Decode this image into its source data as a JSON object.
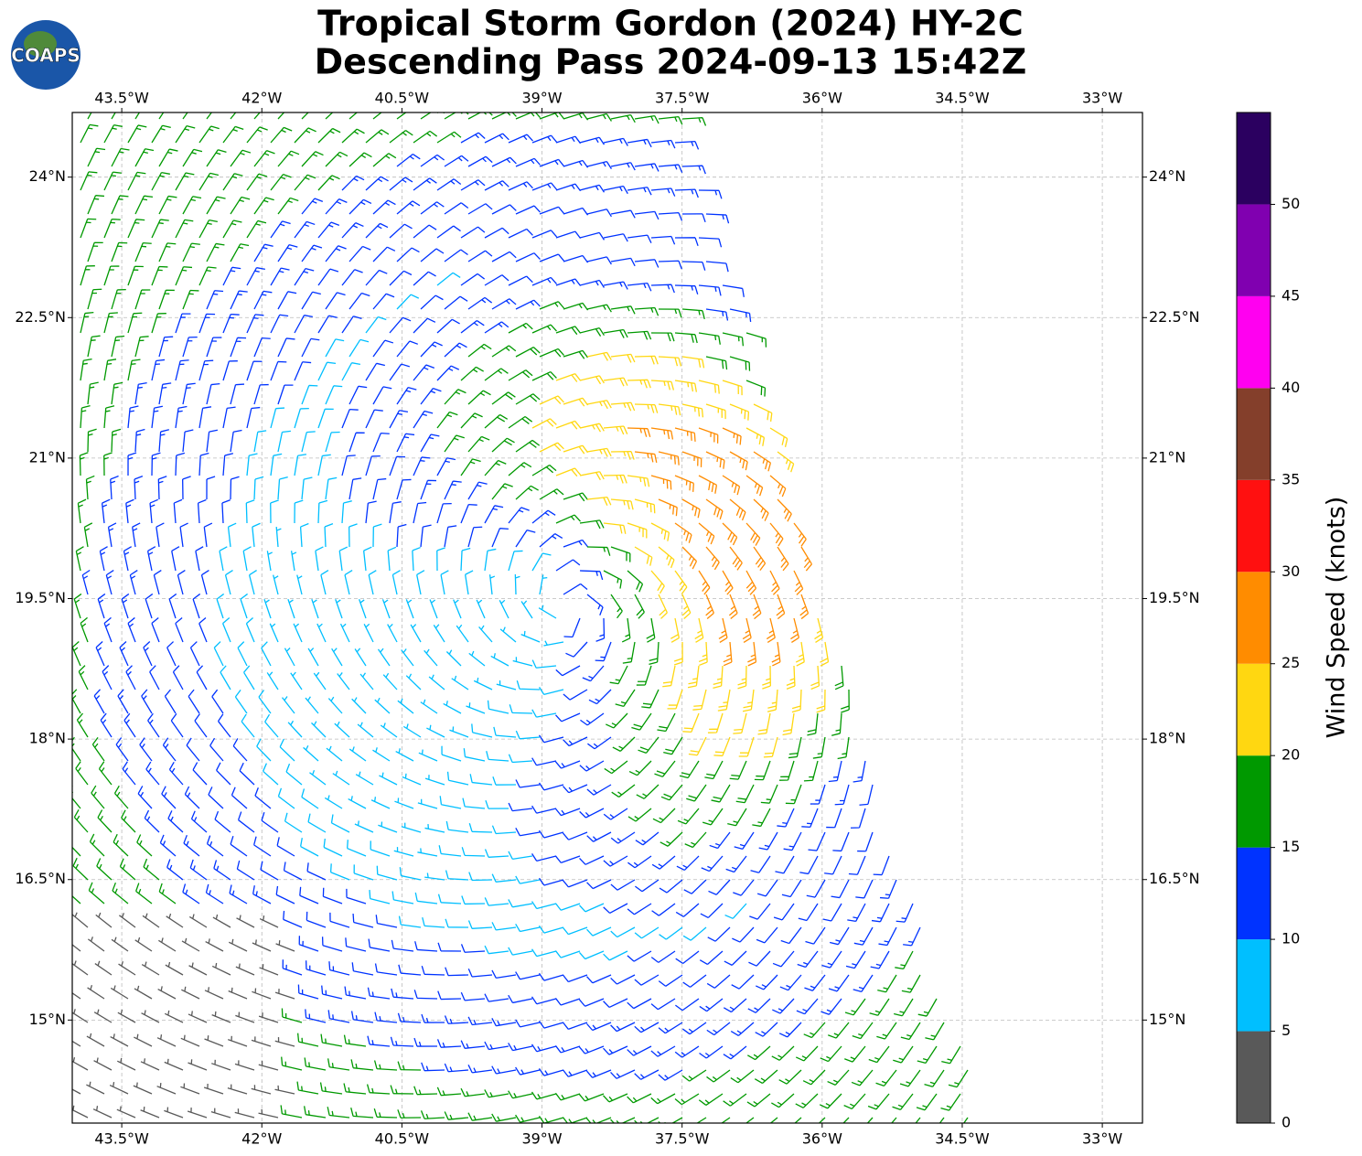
{
  "chart_data": {
    "type": "wind-barb-map",
    "title": [
      "Tropical Storm Gordon (2024) HY-2C",
      "Descending Pass 2024-09-13 15:42Z"
    ],
    "logo_text": "COAPS",
    "xlim": [
      -44.03,
      -32.57
    ],
    "ylim": [
      13.9,
      24.69
    ],
    "xticks": [
      {
        "value": -43.5,
        "label": "43.5°W"
      },
      {
        "value": -42,
        "label": "42°W"
      },
      {
        "value": -40.5,
        "label": "40.5°W"
      },
      {
        "value": -39,
        "label": "39°W"
      },
      {
        "value": -37.5,
        "label": "37.5°W"
      },
      {
        "value": -36,
        "label": "36°W"
      },
      {
        "value": -34.5,
        "label": "34.5°W"
      },
      {
        "value": -33,
        "label": "33°W"
      }
    ],
    "yticks": [
      {
        "value": 15,
        "label": "15°N"
      },
      {
        "value": 16.5,
        "label": "16.5°N"
      },
      {
        "value": 18,
        "label": "18°N"
      },
      {
        "value": 19.5,
        "label": "19.5°N"
      },
      {
        "value": 21,
        "label": "21°N"
      },
      {
        "value": 22.5,
        "label": "22.5°N"
      },
      {
        "value": 24,
        "label": "24°N"
      }
    ],
    "grid": true,
    "colorbar": {
      "label": "Wind Speed (knots)",
      "lim": [
        0,
        55
      ],
      "ticks": [
        0,
        5,
        10,
        15,
        20,
        25,
        30,
        35,
        40,
        45,
        50
      ],
      "colors": [
        "#595959",
        "#00bfff",
        "#0033ff",
        "#009900",
        "#ffd711",
        "#ff8c00",
        "#ff1010",
        "#843f2b",
        "#ff00f0",
        "#8000b0",
        "#2b0060"
      ]
    }
  }
}
